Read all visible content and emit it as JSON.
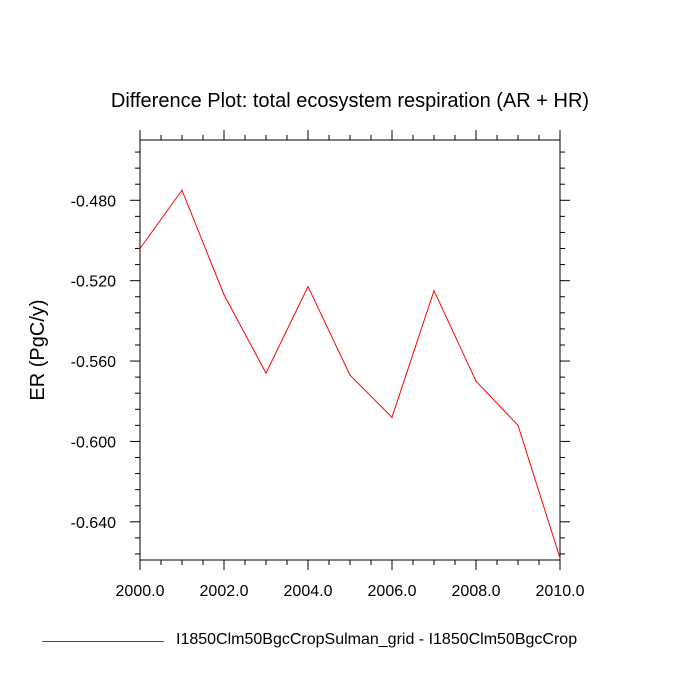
{
  "chart_data": {
    "type": "line",
    "title": "Difference Plot: total ecosystem respiration (AR + HR)",
    "xlabel": "",
    "ylabel": "ER  (PgC/y)",
    "x": [
      2000,
      2001,
      2002,
      2003,
      2004,
      2005,
      2006,
      2007,
      2008,
      2009,
      2010
    ],
    "series": [
      {
        "name": "I1850Clm50BgcCropSulman_grid - I1850Clm50BgcCrop",
        "color": "#ff0000",
        "values": [
          -0.504,
          -0.475,
          -0.527,
          -0.566,
          -0.523,
          -0.567,
          -0.588,
          -0.525,
          -0.57,
          -0.592,
          -0.658
        ]
      }
    ],
    "xlim": [
      2000,
      2010
    ],
    "ylim": [
      -0.659,
      -0.45
    ],
    "xticks": [
      "2000.0",
      "2002.0",
      "2004.0",
      "2006.0",
      "2008.0",
      "2010.0"
    ],
    "yticks": [
      "-0.480",
      "-0.520",
      "-0.560",
      "-0.600",
      "-0.640"
    ],
    "grid": false,
    "legend_position": "bottom"
  }
}
